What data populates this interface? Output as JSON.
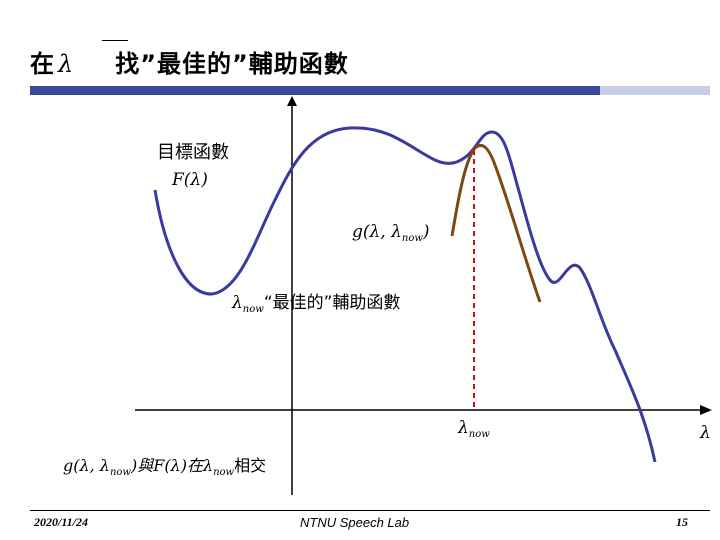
{
  "title": {
    "prefix": "在",
    "lambda": "λ",
    "rest": "找”最佳的”輔助函數"
  },
  "labels": {
    "objective": "目標函數",
    "F": "F(λ)",
    "g_main": "g(λ, λ",
    "g_sub": "now",
    "g_close": ")",
    "best_lambda": "λ",
    "best_sub": "now",
    "best_text": "“最佳的”輔助函數",
    "lnow_lambda": "λ",
    "lnow_sub": "now",
    "axis_lambda": "λ",
    "caption_g": "g(λ, λ",
    "caption_sub1": "now",
    "caption_mid": ")與F(λ)在λ",
    "caption_sub2": "now",
    "caption_end": "相交"
  },
  "footer": {
    "date": "2020/11/24",
    "lab": "NTNU Speech Lab",
    "page": "15"
  },
  "colors": {
    "title_bar": "#3b4a9c",
    "title_bar_light": "#c6cde8",
    "F_curve": "#3a3aa0",
    "g_curve": "#7a4a12",
    "dashed": "#d01010"
  }
}
